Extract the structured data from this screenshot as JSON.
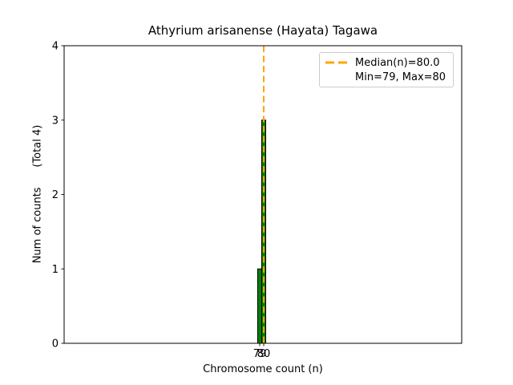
{
  "chart_data": {
    "type": "bar",
    "subtype": "histogram",
    "title": "Athyrium arisanense (Hayata) Tagawa",
    "xlabel": "Chromosome count (n)",
    "ylabel": "Num of counts      (Total 4)",
    "categories": [
      79,
      80
    ],
    "values": [
      1,
      3
    ],
    "total_counts": 4,
    "median": 80.0,
    "min": 79,
    "max": 80,
    "bin_width": 1,
    "xticks": [
      79,
      80
    ],
    "yticks": [
      0,
      1,
      2,
      3,
      4
    ],
    "xlim": [
      30.2,
      129.4
    ],
    "ylim": [
      0,
      4
    ],
    "grid": false,
    "bar_color": "#008000",
    "bar_edge_color": "#000000",
    "median_color": "#FFA500",
    "axis_color": "#000000",
    "legend_position": "upper right",
    "legend": [
      {
        "label": "Median(n)=80.0",
        "marker": "dashed-line"
      },
      {
        "label": "Min=79, Max=80",
        "marker": "none"
      }
    ]
  }
}
